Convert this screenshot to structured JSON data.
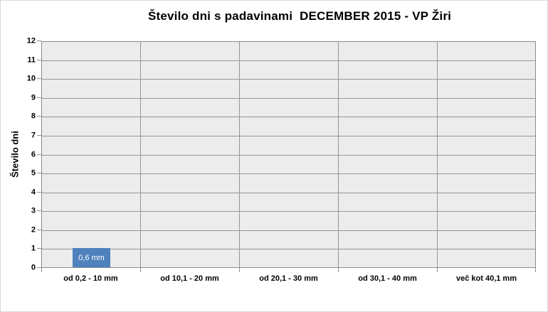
{
  "chart_data": {
    "type": "bar",
    "title": "Število dni s padavinami  DECEMBER 2015 - VP Žiri",
    "categories": [
      "od 0,2 - 10 mm",
      "od 10,1 - 20 mm",
      "od 20,1 - 30 mm",
      "od 30,1 - 40 mm",
      "več kot 40,1 mm"
    ],
    "values": [
      1,
      0,
      0,
      0,
      0
    ],
    "data_labels": [
      "0,6 mm",
      "",
      "",
      "",
      ""
    ],
    "xlabel": "",
    "ylabel": "Število dni",
    "ylim": [
      0,
      12
    ],
    "ytick_step": 1,
    "grid": true,
    "legend": "none",
    "colors": {
      "bar": "#4f81bd",
      "bar_label_text": "#ffffff",
      "plot_background": "#ececec",
      "gridline": "#969696",
      "axis_line": "#8c8c8c",
      "text": "#000000",
      "page_background": "#ffffff",
      "page_border": "#d9d9d9"
    }
  }
}
